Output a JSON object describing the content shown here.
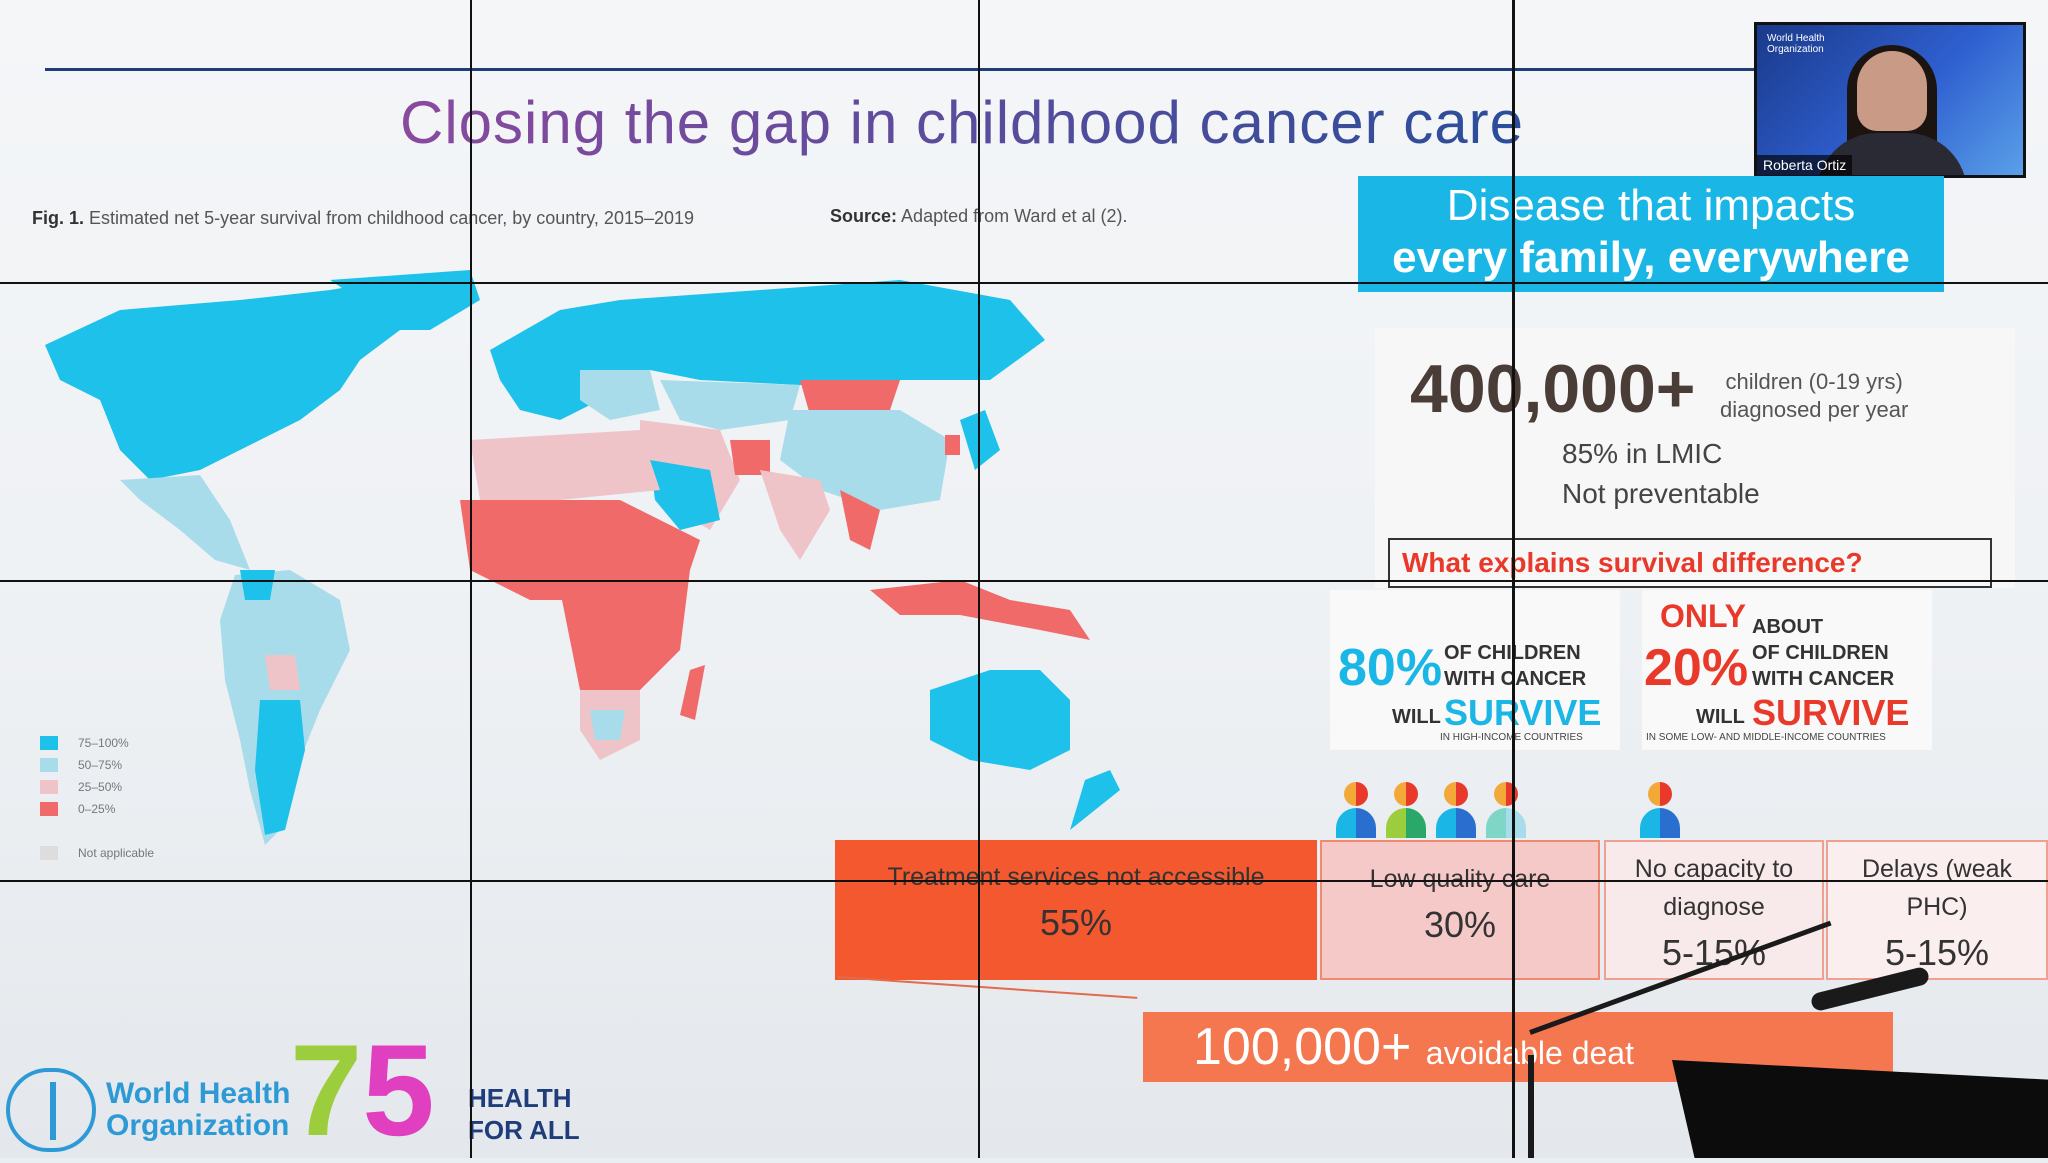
{
  "slide": {
    "title": "Closing the gap in childhood cancer care",
    "figure_caption_bold": "Fig. 1.",
    "figure_caption": "Estimated net 5-year survival from childhood cancer, by country, 2015–2019",
    "source_bold": "Source:",
    "source_text": "Adapted from Ward et al (2).",
    "legend": [
      {
        "label": "75–100%",
        "color": "#1ec1ea"
      },
      {
        "label": "50–75%",
        "color": "#a9dcea"
      },
      {
        "label": "25–50%",
        "color": "#efc4c8"
      },
      {
        "label": "0–25%",
        "color": "#f06a6a"
      }
    ],
    "legend_na": {
      "label": "Not applicable",
      "color": "#dddddd"
    },
    "banner_line1": "Disease that impacts",
    "banner_line2": "every family, everywhere",
    "big_number": "400,000+",
    "big_sub_line1": "children (0-19 yrs)",
    "big_sub_line2": "diagnosed per year",
    "lmic_line1": "85% in LMIC",
    "lmic_line2": "Not preventable",
    "question": "What explains survival difference?",
    "high_income": {
      "pct": "80%",
      "of": "OF CHILDREN",
      "with": "WITH CANCER",
      "will": "WILL",
      "survive": "SURVIVE",
      "note": "IN HIGH-INCOME COUNTRIES"
    },
    "low_income": {
      "only": "ONLY",
      "about": "ABOUT",
      "pct": "20%",
      "of": "OF CHILDREN",
      "with": "WITH CANCER",
      "will": "WILL",
      "survive": "SURVIVE",
      "note": "IN SOME LOW- AND MIDDLE-INCOME COUNTRIES"
    },
    "causes": [
      {
        "label": "Treatment services not accessible",
        "value": "55%"
      },
      {
        "label": "Low quality care",
        "value": "30%"
      },
      {
        "label": "No capacity to diagnose",
        "value": "5-15%"
      },
      {
        "label": "Delays (weak PHC)",
        "value": "5-15%"
      }
    ],
    "avoidable_number": "100,000+",
    "avoidable_text": "avoidable deat",
    "who_line1": "World Health",
    "who_line2": "Organization",
    "anniv_7": "7",
    "anniv_5": "5",
    "health_line1": "HEALTH",
    "health_line2": "FOR ALL"
  },
  "video": {
    "presenter_name": "Roberta Ortiz",
    "badge_line1": "World Health",
    "badge_line2": "Organization"
  },
  "colors": {
    "accent_blue": "#1ab6e6",
    "accent_red": "#e8392a",
    "cause_dark": "#f4582e",
    "cause_light": "#f6c9c9"
  }
}
